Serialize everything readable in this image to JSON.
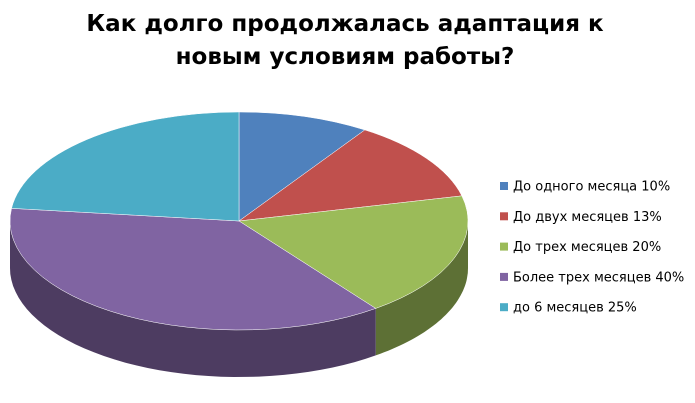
{
  "chart_data": {
    "type": "pie3d",
    "title": "Как долго продолжалась адаптация к новым условиям работы?",
    "categories": [
      "До одного месяца 10%",
      "До двух месяцев 13%",
      "До трех месяцев 20%",
      "Более трех месяцев 40%",
      "до 6 месяцев 25%"
    ],
    "values": [
      10,
      13,
      20,
      40,
      25
    ],
    "colors": [
      "#4f81bd",
      "#c0504d",
      "#9bbb59",
      "#8064a2",
      "#4bacc6"
    ],
    "legend": "right"
  }
}
